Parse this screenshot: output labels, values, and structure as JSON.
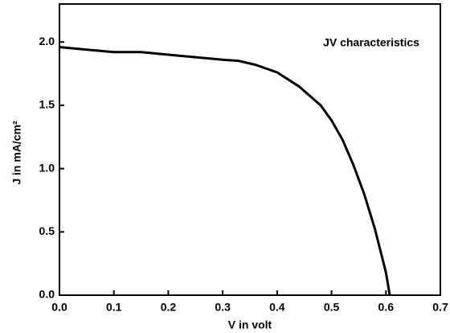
{
  "chart_data": {
    "type": "line",
    "annotation": "JV characteristics",
    "x_label": "V in volt",
    "y_label": "J in mA/cm²",
    "x": [
      0,
      0.05,
      0.1,
      0.15,
      0.2,
      0.25,
      0.3,
      0.33,
      0.36,
      0.4,
      0.44,
      0.48,
      0.5,
      0.52,
      0.54,
      0.56,
      0.58,
      0.6,
      0.607
    ],
    "values": [
      1.96,
      1.94,
      1.92,
      1.92,
      1.9,
      1.88,
      1.86,
      1.85,
      1.82,
      1.76,
      1.65,
      1.5,
      1.38,
      1.23,
      1.03,
      0.8,
      0.52,
      0.18,
      0
    ],
    "color": "#000000",
    "xlim": [
      0,
      0.7
    ],
    "ylim": [
      0,
      2.3
    ],
    "xticks": [
      {
        "value": 0,
        "label": "0.0"
      },
      0.1,
      0.2,
      0.3,
      0.4,
      0.5,
      0.6,
      0.7
    ],
    "yticks": [
      {
        "value": 0,
        "label": "0.0"
      },
      0.5,
      {
        "value": 1,
        "label": "1.0"
      },
      1.5,
      {
        "value": 2,
        "label": "2.0"
      }
    ]
  }
}
